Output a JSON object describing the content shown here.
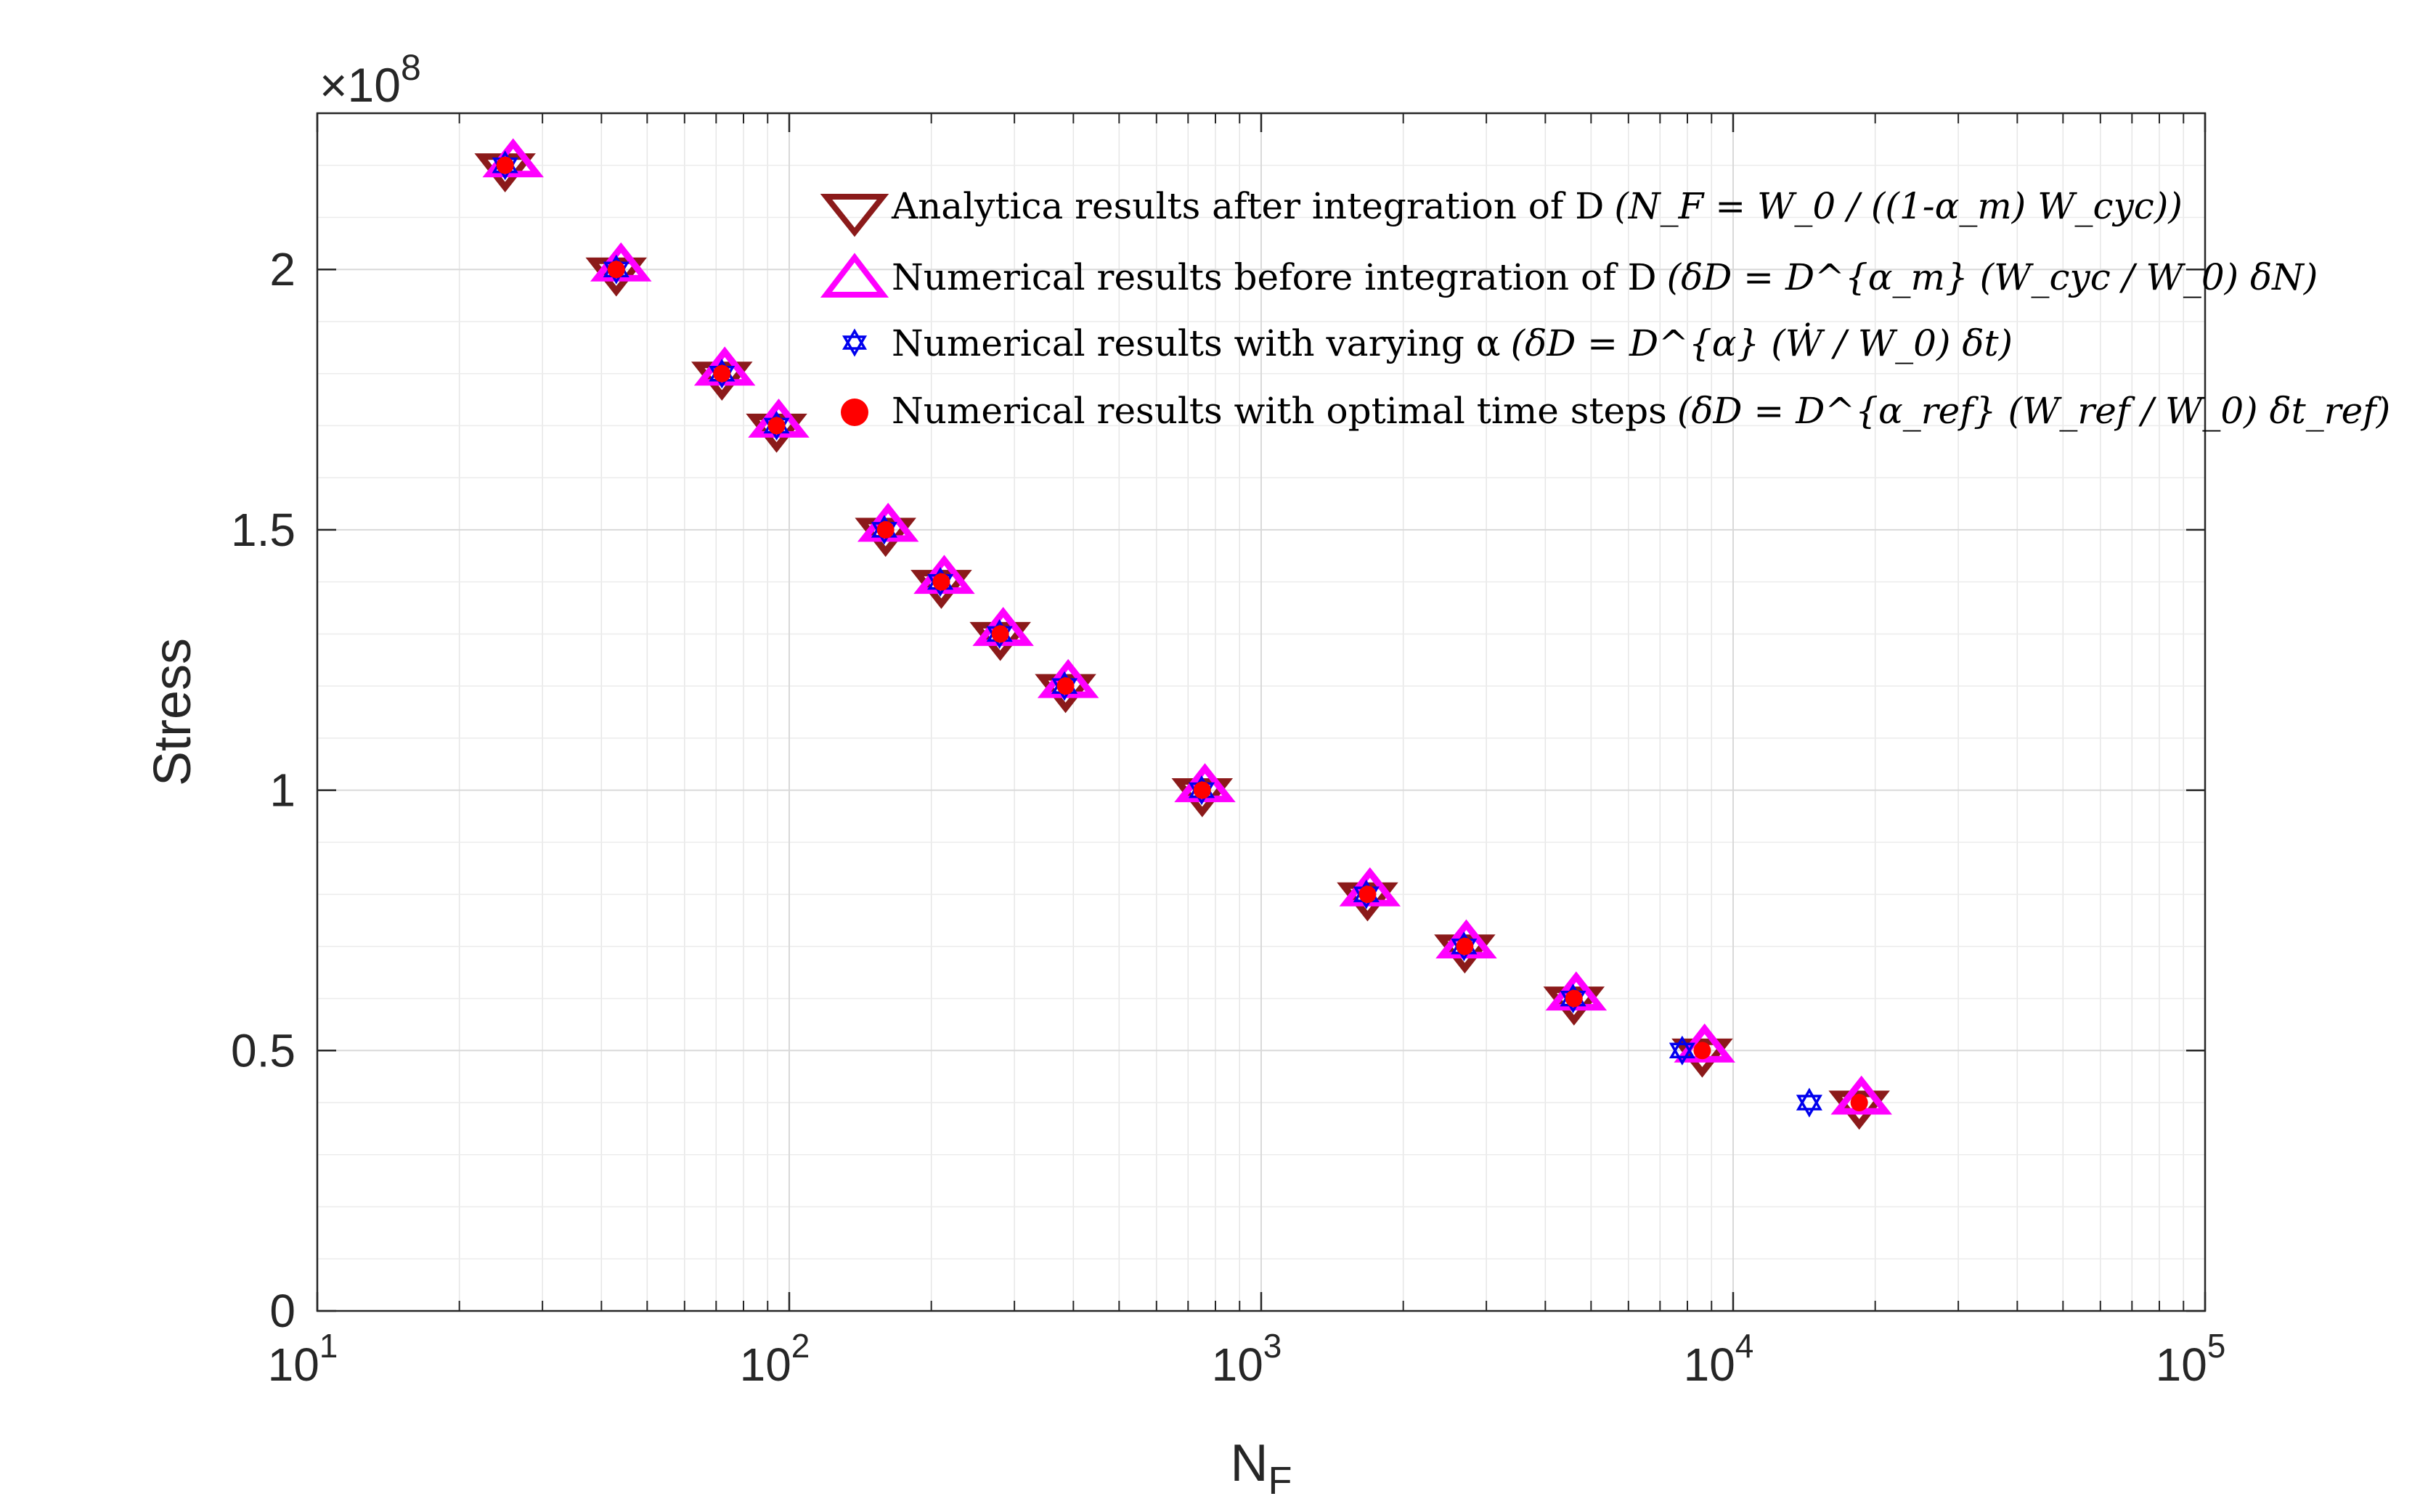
{
  "chart_data": {
    "type": "scatter",
    "title": "",
    "xlabel_base": "N",
    "xlabel_sub": "F",
    "ylabel": "Stress",
    "x_scale": "log",
    "xlim": [
      10,
      100000
    ],
    "ylim": [
      0,
      230000000
    ],
    "y_multiplier_label": "×10",
    "y_multiplier_exp": "8",
    "grid": true,
    "legend_position": "top-right",
    "x_ticks": [
      {
        "base": "10",
        "exp": "1",
        "value": 10
      },
      {
        "base": "10",
        "exp": "2",
        "value": 100
      },
      {
        "base": "10",
        "exp": "3",
        "value": 1000
      },
      {
        "base": "10",
        "exp": "4",
        "value": 10000
      },
      {
        "base": "10",
        "exp": "5",
        "value": 100000
      }
    ],
    "y_ticks": [
      {
        "label": "0",
        "value": 0
      },
      {
        "label": "0.5",
        "value": 50000000
      },
      {
        "label": "1",
        "value": 100000000
      },
      {
        "label": "1.5",
        "value": 150000000
      },
      {
        "label": "2",
        "value": 200000000
      }
    ],
    "series": [
      {
        "name": "Analytica results after integration of D",
        "formula": "(N_F = W_0 / ((1-α_m) W_cyc))",
        "marker": "triangle-down",
        "color": "#8b1a1a",
        "x": [
          25,
          43,
          72,
          94,
          160,
          210,
          280,
          385,
          750,
          1680,
          2700,
          4600,
          8600,
          18500
        ],
        "y": [
          220000000,
          200000000,
          180000000,
          170000000,
          150000000,
          140000000,
          130000000,
          120000000,
          100000000,
          80000000,
          70000000,
          60000000,
          50000000,
          40000000
        ]
      },
      {
        "name": "Numerical results before integration of D",
        "formula": "(δD = D^{α_m} (W_cyc / W_0) δN)",
        "marker": "triangle-up",
        "color": "#ff00ff",
        "x": [
          26,
          44,
          73,
          95,
          162,
          213,
          284,
          390,
          760,
          1700,
          2720,
          4650,
          8700,
          18700
        ],
        "y": [
          220000000,
          200000000,
          180000000,
          170000000,
          150000000,
          140000000,
          130000000,
          120000000,
          100000000,
          80000000,
          70000000,
          60000000,
          50000000,
          40000000
        ]
      },
      {
        "name": "Numerical results with varying α",
        "formula": "(δD = D^{α} (Ẇ / W_0) δt)",
        "marker": "hexagram",
        "color": "#0000ee",
        "x": [
          25,
          43,
          72,
          94,
          159,
          209,
          279,
          383,
          748,
          1670,
          2690,
          4580,
          7800,
          14500
        ],
        "y": [
          220000000,
          200000000,
          180000000,
          170000000,
          150000000,
          140000000,
          130000000,
          120000000,
          100000000,
          80000000,
          70000000,
          60000000,
          50000000,
          40000000
        ]
      },
      {
        "name": "Numerical results with optimal time steps",
        "formula": "(δD = D^{α_ref} (W_ref / W_0) δt_ref)",
        "marker": "circle",
        "color": "#ff0000",
        "x": [
          25,
          43,
          72,
          94,
          160,
          210,
          280,
          385,
          750,
          1680,
          2700,
          4600,
          8600,
          18500
        ],
        "y": [
          220000000,
          200000000,
          180000000,
          170000000,
          150000000,
          140000000,
          130000000,
          120000000,
          100000000,
          80000000,
          70000000,
          60000000,
          50000000,
          40000000
        ]
      }
    ]
  }
}
